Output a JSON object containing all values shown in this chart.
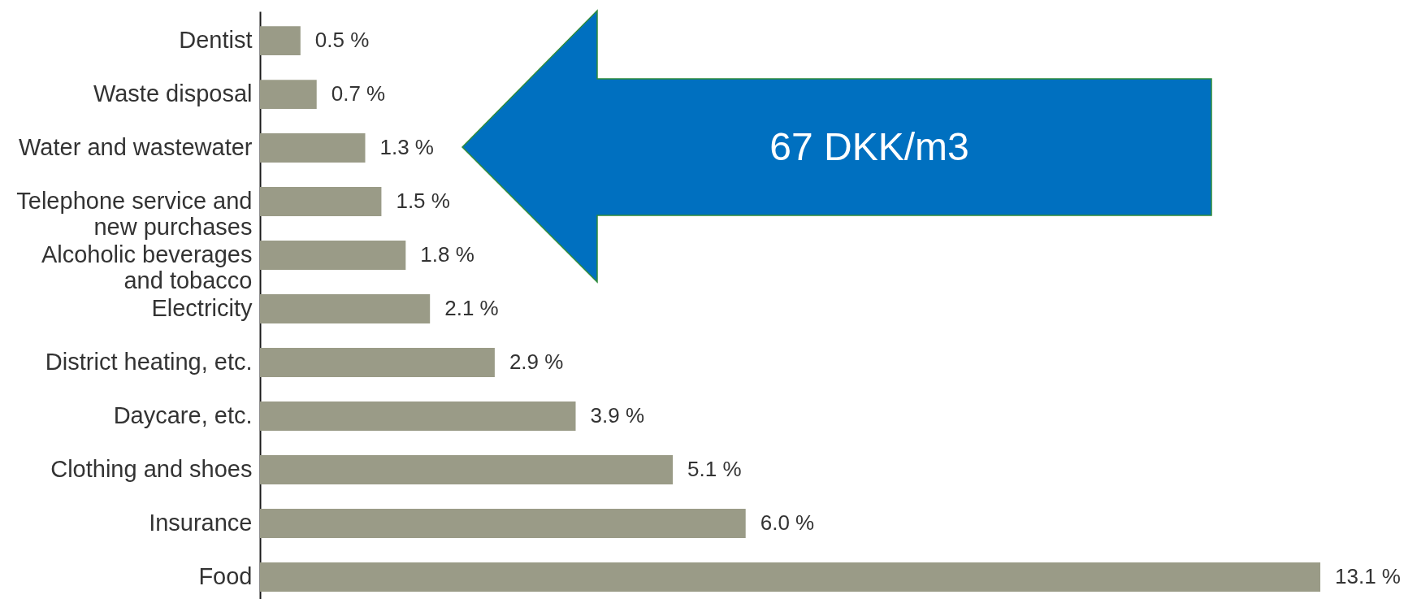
{
  "chart_data": {
    "type": "bar",
    "orientation": "horizontal",
    "categories": [
      "Dentist",
      "Waste disposal",
      "Water and wastewater",
      "Telephone service and new purchases",
      "Alcoholic beverages and tobacco",
      "Electricity",
      "District heating, etc.",
      "Daycare, etc.",
      "Clothing and shoes",
      "Insurance",
      "Food"
    ],
    "values": [
      0.5,
      0.7,
      1.3,
      1.5,
      1.8,
      2.1,
      2.9,
      3.9,
      5.1,
      6.0,
      13.1
    ],
    "color": "#9a9b87",
    "value_labels": [
      "0.5 %",
      "0.7 %",
      "1.3 %",
      "1.5 %",
      "1.8 %",
      "2.1 %",
      "2.9 %",
      "3.9 %",
      "5.1 %",
      "6.0 %",
      "13.1 %"
    ],
    "annotations": [
      "67 DKK/m3"
    ],
    "grid": false,
    "tick_labels": "y"
  }
}
